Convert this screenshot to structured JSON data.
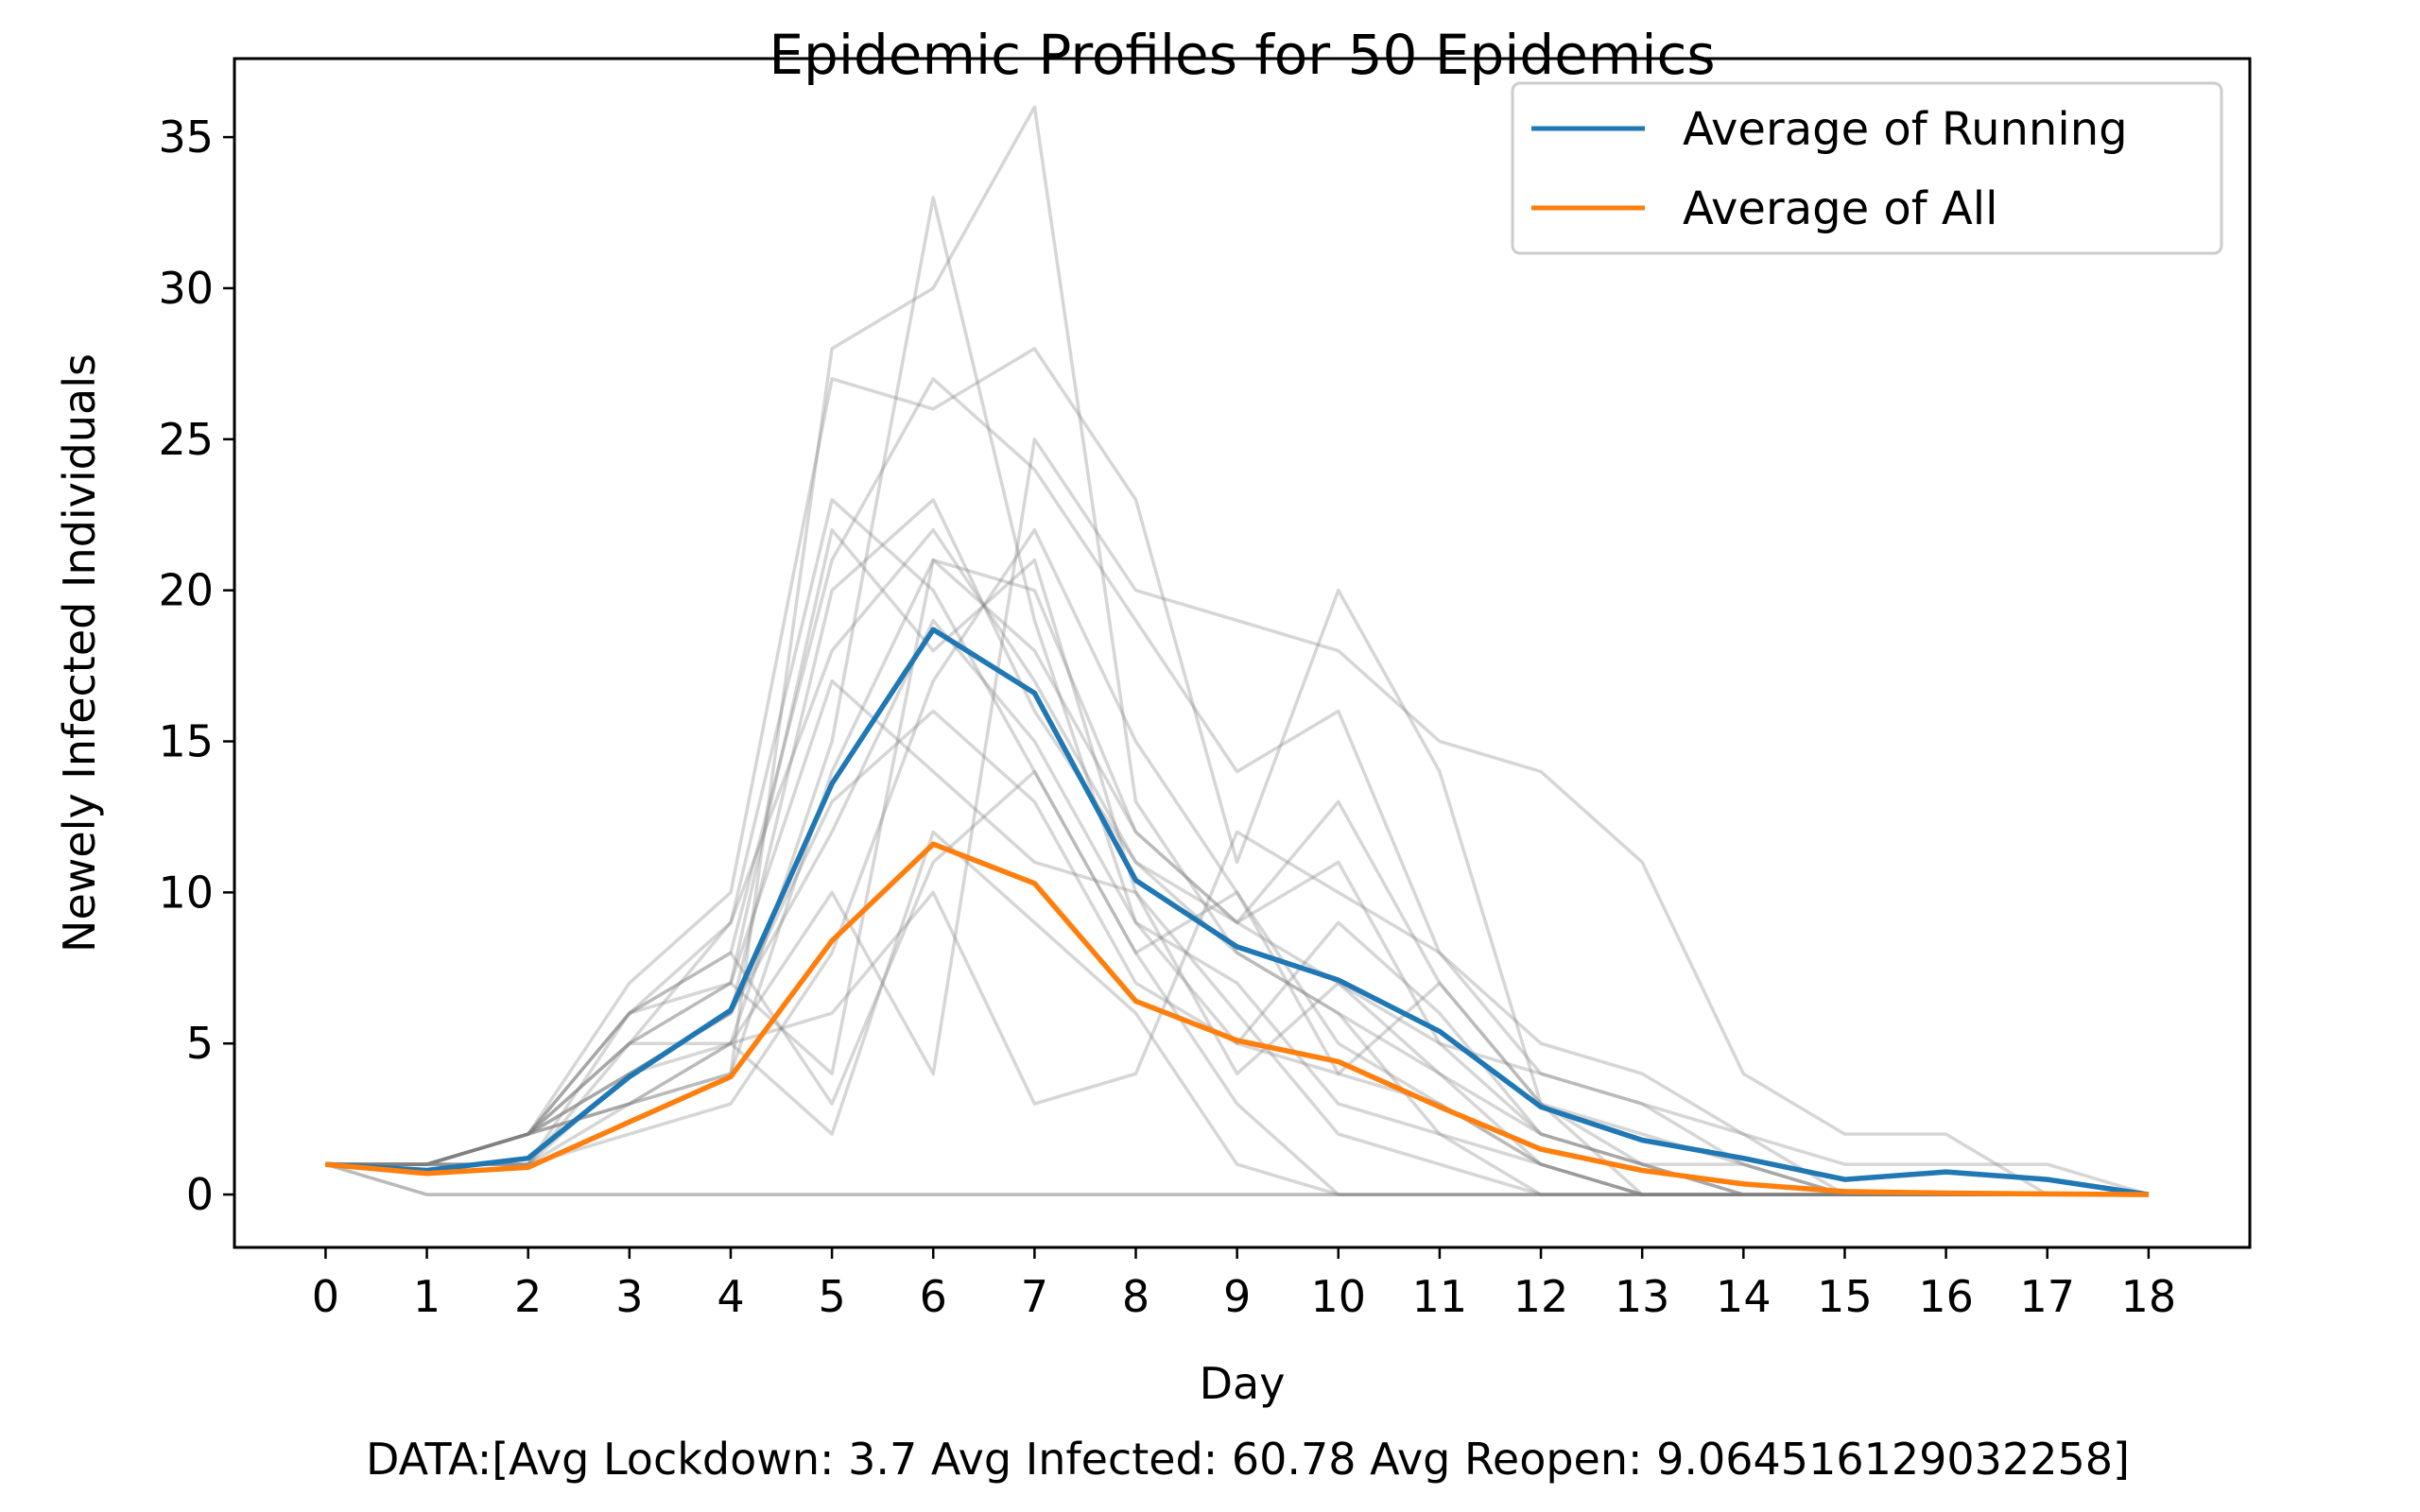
{
  "chart_data": {
    "type": "line",
    "title": "Epidemic Profiles for 50 Epidemics",
    "xlabel": "Day",
    "ylabel": "Newely Infected Individuals",
    "footer": "DATA:[Avg Lockdown: 3.7 Avg Infected: 60.78 Avg Reopen: 9.064516129032258]",
    "x": [
      0,
      1,
      2,
      3,
      4,
      5,
      6,
      7,
      8,
      9,
      10,
      11,
      12,
      13,
      14,
      15,
      16,
      17,
      18
    ],
    "xlim": [
      -0.9,
      19.0
    ],
    "ylim": [
      -1.75,
      37.6
    ],
    "xticks": [
      0,
      1,
      2,
      3,
      4,
      5,
      6,
      7,
      8,
      9,
      10,
      11,
      12,
      13,
      14,
      15,
      16,
      17,
      18
    ],
    "yticks": [
      0,
      5,
      10,
      15,
      20,
      25,
      30,
      35
    ],
    "grid": false,
    "legend_position": "top-right",
    "legend": [
      "Average of Running",
      "Average of All"
    ],
    "series": [
      {
        "name": "Average of Running",
        "color": "#1f77b4",
        "values": [
          1,
          0.8,
          1.2,
          3.9,
          6.1,
          13.6,
          18.7,
          16.6,
          10.4,
          8.2,
          7.1,
          5.4,
          2.9,
          1.8,
          1.2,
          0.5,
          0.75,
          0.5,
          0
        ]
      },
      {
        "name": "Average of All",
        "color": "#ff7f0e",
        "values": [
          1,
          0.7,
          0.9,
          2.4,
          3.9,
          8.4,
          11.6,
          10.3,
          6.4,
          5.1,
          4.4,
          2.9,
          1.5,
          0.8,
          0.35,
          0.1,
          0.05,
          0.02,
          0
        ]
      }
    ],
    "background_series_color": "#808080",
    "background_series": [
      [
        1,
        1,
        2,
        6,
        9,
        23,
        20,
        14,
        8,
        10,
        4,
        7,
        3,
        1,
        0,
        0,
        0,
        0,
        0
      ],
      [
        1,
        1,
        2,
        5,
        7,
        22,
        18,
        21,
        10,
        6,
        2,
        1,
        0,
        0,
        0,
        0,
        0,
        0,
        0
      ],
      [
        1,
        1,
        1,
        4,
        6,
        20,
        23,
        16,
        11,
        9,
        13,
        7,
        3,
        2,
        1,
        0,
        0,
        0,
        0
      ],
      [
        1,
        1,
        2,
        3,
        5,
        15,
        33,
        19,
        9,
        5,
        4,
        3,
        1,
        0,
        0,
        0,
        0,
        0,
        0
      ],
      [
        1,
        1,
        1,
        3,
        4,
        28,
        30,
        36,
        13,
        8,
        6,
        2,
        1,
        0,
        0,
        0,
        0,
        0,
        0
      ],
      [
        1,
        1,
        2,
        7,
        10,
        27,
        26,
        28,
        23,
        11,
        20,
        14,
        3,
        0,
        0,
        0,
        0,
        0,
        0
      ],
      [
        1,
        1,
        2,
        4,
        5,
        10,
        4,
        25,
        20,
        19,
        18,
        15,
        14,
        11,
        4,
        2,
        2,
        0,
        0
      ],
      [
        1,
        1,
        1,
        6,
        8,
        21,
        27,
        24,
        19,
        14,
        16,
        8,
        5,
        4,
        2,
        0,
        0,
        0,
        0
      ],
      [
        1,
        1,
        2,
        5,
        5,
        6,
        10,
        3,
        4,
        12,
        10,
        8,
        4,
        3,
        1,
        0,
        0,
        0,
        0
      ],
      [
        1,
        1,
        2,
        3,
        5,
        2,
        12,
        9,
        6,
        1,
        0,
        0,
        0,
        0,
        0,
        0,
        0,
        0,
        0
      ],
      [
        1,
        1,
        1,
        5,
        7,
        4,
        21,
        18,
        12,
        9,
        11,
        5,
        2,
        1,
        1,
        0,
        0,
        0,
        0
      ],
      [
        1,
        0,
        0,
        0,
        0,
        0,
        0,
        0,
        0,
        0,
        0,
        0,
        0,
        0,
        0,
        0,
        0,
        0,
        0
      ],
      [
        1,
        1,
        2,
        6,
        7,
        17,
        14,
        11,
        10,
        4,
        7,
        5,
        4,
        3,
        2,
        1,
        1,
        1,
        0
      ],
      [
        1,
        1,
        2,
        4,
        6,
        13,
        16,
        13,
        7,
        5,
        9,
        6,
        2,
        1,
        0,
        0,
        0,
        0,
        0
      ],
      [
        1,
        1,
        1,
        2,
        3,
        8,
        17,
        22,
        15,
        10,
        5,
        3,
        1,
        0,
        0,
        0,
        0,
        0,
        0
      ],
      [
        1,
        1,
        2,
        6,
        8,
        3,
        11,
        14,
        8,
        3,
        0,
        0,
        0,
        0,
        0,
        0,
        0,
        0,
        0
      ],
      [
        1,
        1,
        2,
        4,
        6,
        12,
        19,
        15,
        9,
        7,
        3,
        2,
        0,
        0,
        0,
        0,
        0,
        0,
        0
      ],
      [
        1,
        1,
        2,
        5,
        9,
        18,
        22,
        17,
        11,
        8,
        6,
        4,
        2,
        1,
        0,
        0,
        0,
        0,
        0
      ],
      [
        1,
        0,
        0,
        0,
        0,
        0,
        0,
        0,
        0,
        0,
        0,
        0,
        0,
        0,
        0,
        0,
        0,
        0,
        0
      ],
      [
        1,
        1,
        2,
        3,
        4,
        14,
        21,
        20,
        12,
        9,
        7,
        4,
        1,
        0,
        0,
        0,
        0,
        0,
        0
      ]
    ]
  }
}
